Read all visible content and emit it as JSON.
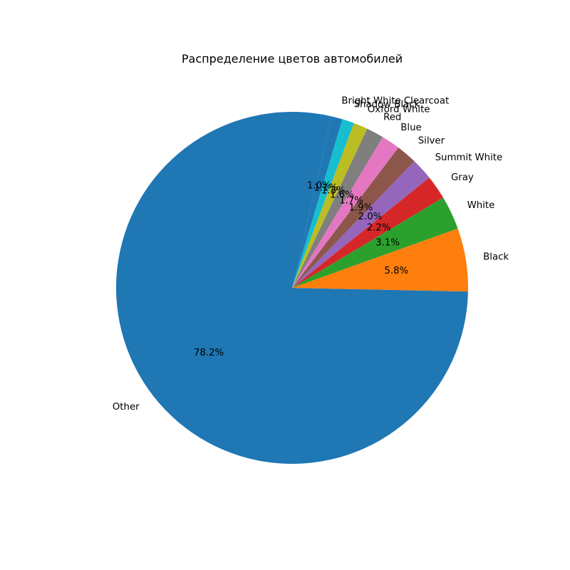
{
  "chart_data": {
    "type": "pie",
    "title": "Распределение цветов автомобилей",
    "start_angle_deg": 90,
    "direction": "counterclockwise",
    "labels": [
      "Black",
      "White",
      "Gray",
      "Summit White",
      "Silver",
      "Blue",
      "Red",
      "Oxford White",
      "Shadow Black",
      "Bright White Clearcoat",
      "Other"
    ],
    "values": [
      5.8,
      3.1,
      2.2,
      2.0,
      1.9,
      1.7,
      1.6,
      1.3,
      1.1,
      1.0,
      78.2
    ],
    "percent_labels": [
      "5.8%",
      "3.1%",
      "2.2%",
      "2.0%",
      "1.9%",
      "1.7%",
      "1.6%",
      "1.3%",
      "1.1%",
      "1.0%",
      "78.2%"
    ],
    "colors": [
      "#ff7f0e",
      "#2ca02c",
      "#d62728",
      "#9467bd",
      "#8c564b",
      "#e377c2",
      "#7f7f7f",
      "#bcbd22",
      "#17becf",
      "#1f77b4",
      "#1f77b4"
    ],
    "legend": "none"
  }
}
